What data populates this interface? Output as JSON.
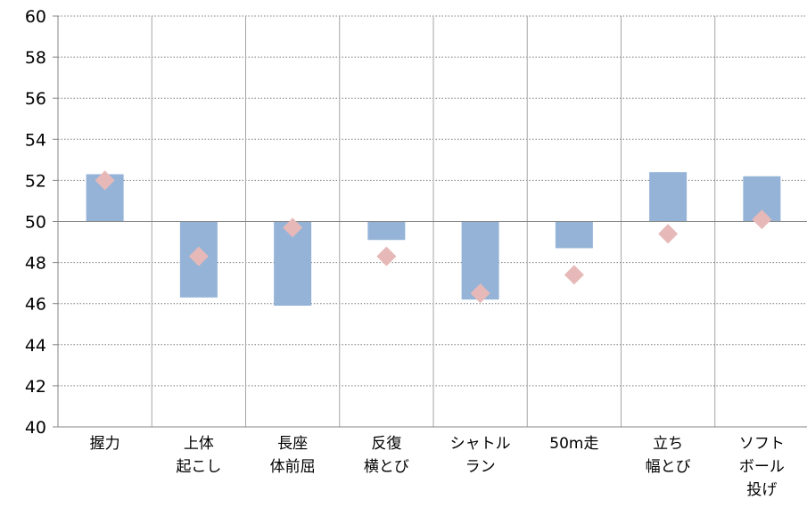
{
  "chart_data": {
    "type": "bar",
    "title": "",
    "xlabel": "",
    "ylabel": "",
    "ylim": [
      40,
      60
    ],
    "baseline": 50,
    "yticks": [
      40,
      42,
      44,
      46,
      48,
      50,
      52,
      54,
      56,
      58,
      60
    ],
    "grid": true,
    "legend": "none",
    "categories": [
      [
        "握力"
      ],
      [
        "上体",
        "起こし"
      ],
      [
        "長座",
        "体前屈"
      ],
      [
        "反復",
        "横とび"
      ],
      [
        "シャトル",
        "ラン"
      ],
      [
        "50m走"
      ],
      [
        "立ち",
        "幅とび"
      ],
      [
        "ソフト",
        "ボール",
        "投げ"
      ]
    ],
    "series": [
      {
        "type": "bar",
        "values": [
          52.3,
          46.3,
          45.9,
          49.1,
          46.2,
          48.7,
          52.4,
          52.2
        ],
        "color": "#95b3d7"
      },
      {
        "type": "marker",
        "marker": "diamond",
        "values": [
          52.0,
          48.3,
          49.7,
          48.3,
          46.5,
          47.4,
          49.4,
          50.1
        ],
        "color": "#e6b9b8"
      }
    ]
  }
}
